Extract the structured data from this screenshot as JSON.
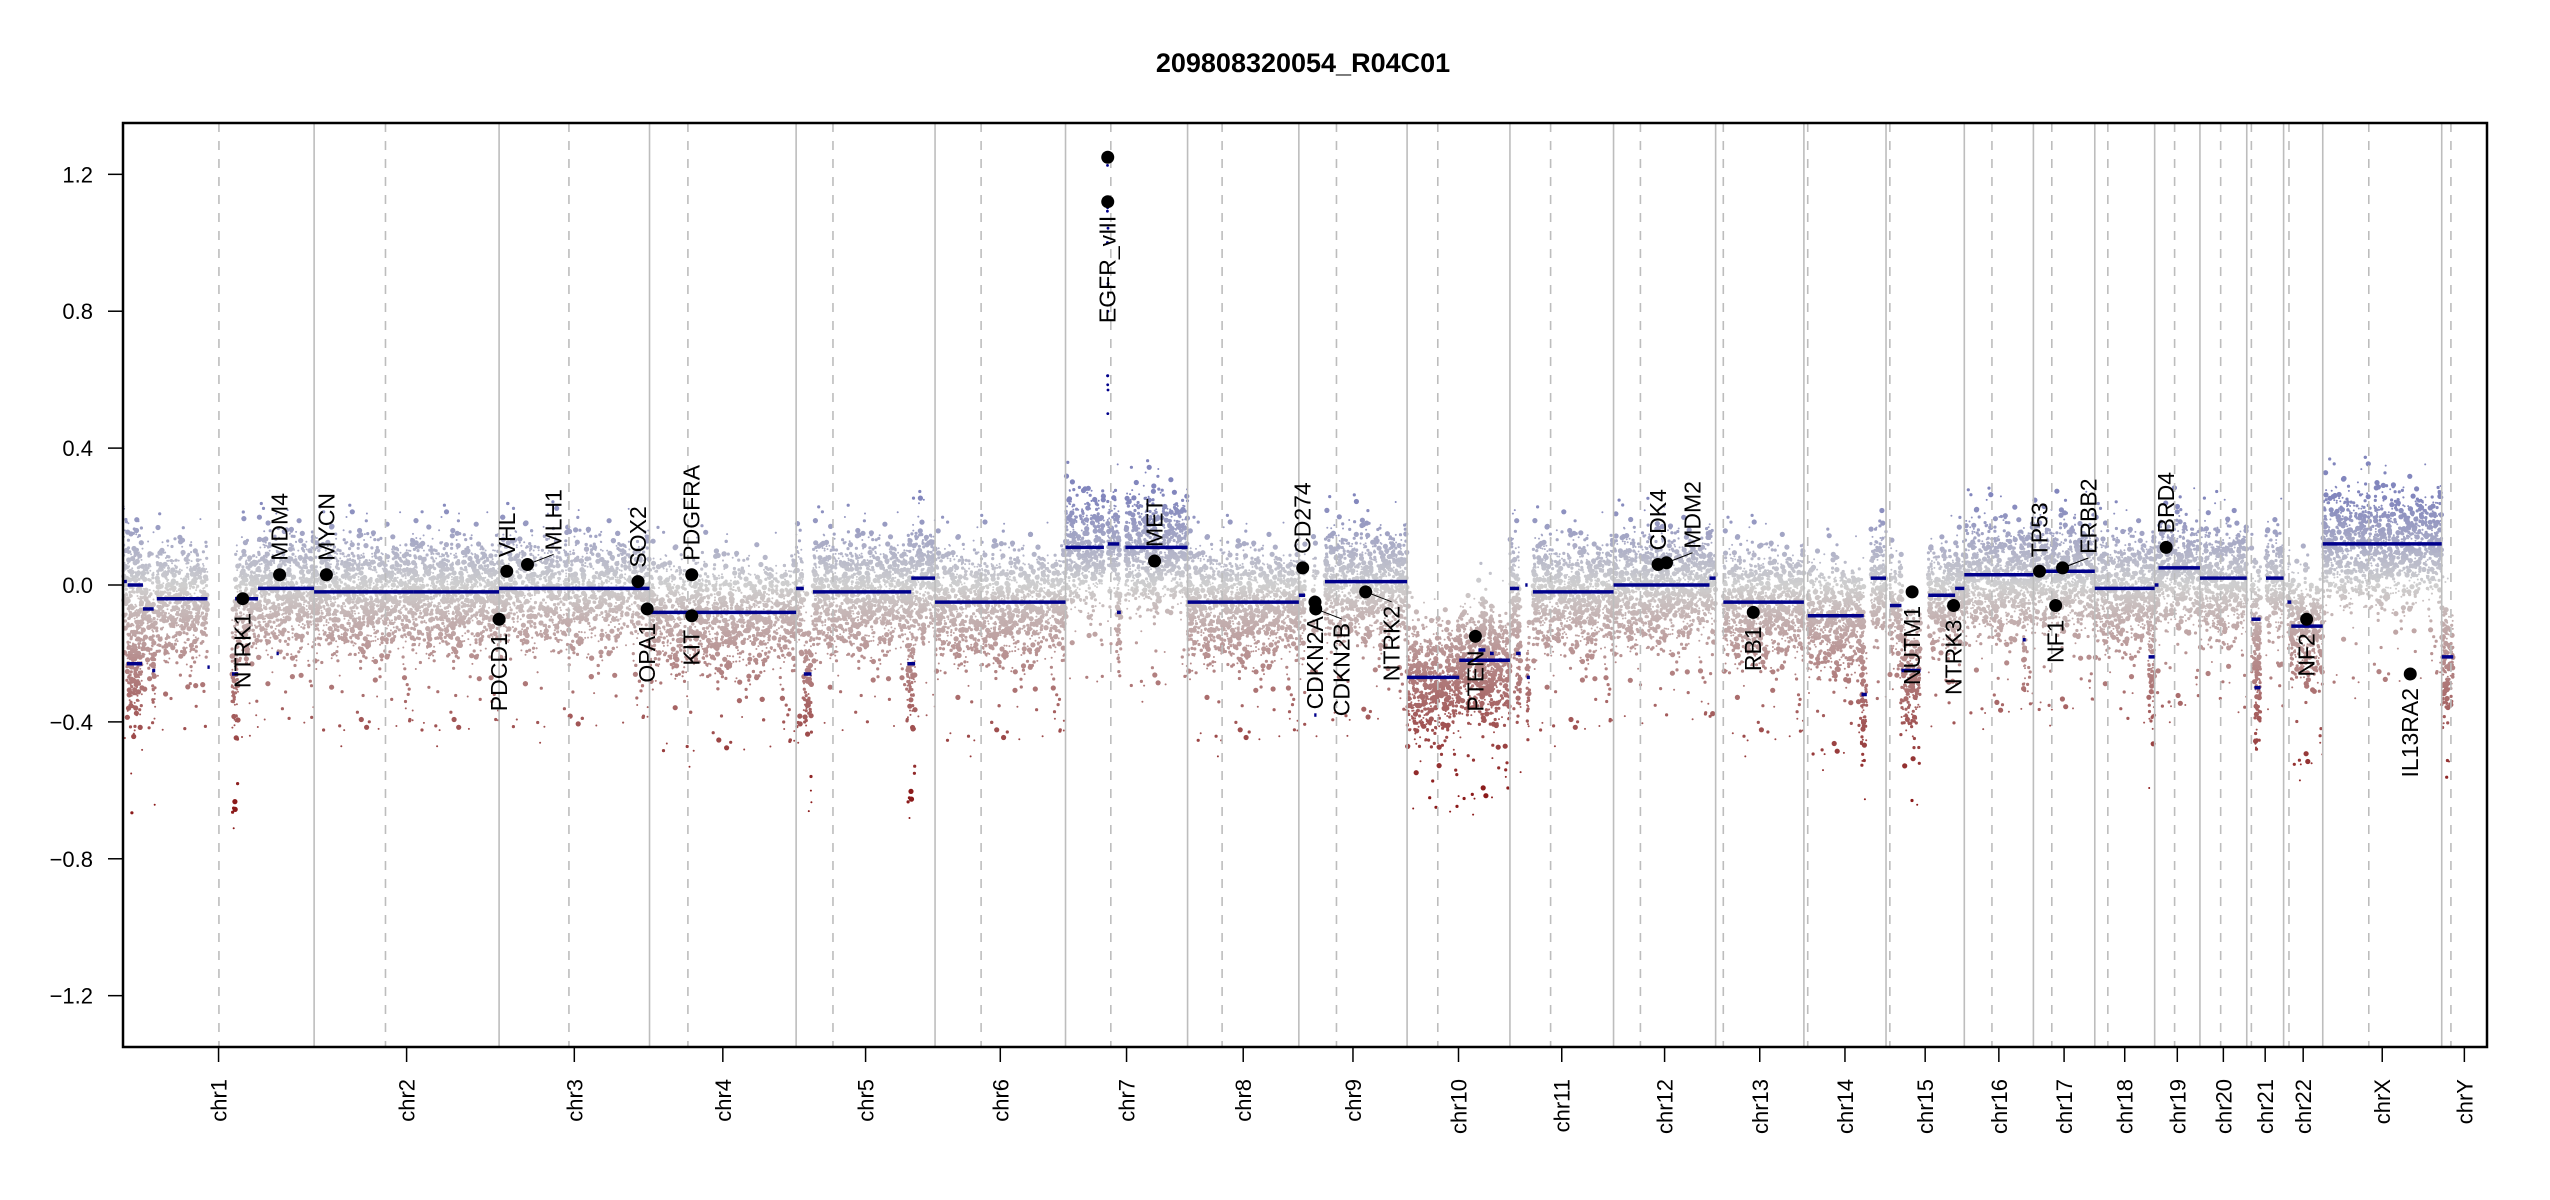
{
  "chart_data": {
    "type": "scatter",
    "title": "209808320054_R04C01",
    "xlabel": "",
    "ylabel": "",
    "ylim": [
      -1.35,
      1.35
    ],
    "yticks": [
      -1.2,
      -0.8,
      -0.4,
      0.0,
      0.4,
      0.8,
      1.2
    ],
    "ytick_labels": [
      "−1.2",
      "−0.8",
      "−0.4",
      "0.0",
      "0.4",
      "0.8",
      "1.2"
    ],
    "grid": false,
    "legend": "none",
    "colors": {
      "gain": "#8286bd",
      "neutral": "#cfcfcf",
      "loss": "#8b1a1a",
      "segment": "#00008b",
      "gene_marker": "#000000",
      "chr_boundary": "#bdbdbd",
      "centromere": "#bdbdbd"
    },
    "chromosomes": [
      {
        "name": "chr1",
        "length": 249,
        "centromere": 125
      },
      {
        "name": "chr2",
        "length": 241,
        "centromere": 93
      },
      {
        "name": "chr3",
        "length": 196,
        "centromere": 91
      },
      {
        "name": "chr4",
        "length": 191,
        "centromere": 50
      },
      {
        "name": "chr5",
        "length": 181,
        "centromere": 48
      },
      {
        "name": "chr6",
        "length": 170,
        "centromere": 60
      },
      {
        "name": "chr7",
        "length": 159,
        "centromere": 59
      },
      {
        "name": "chr8",
        "length": 145,
        "centromere": 45
      },
      {
        "name": "chr9",
        "length": 141,
        "centromere": 49
      },
      {
        "name": "chr10",
        "length": 134,
        "centromere": 40
      },
      {
        "name": "chr11",
        "length": 135,
        "centromere": 53
      },
      {
        "name": "chr12",
        "length": 133,
        "centromere": 35
      },
      {
        "name": "chr13",
        "length": 115,
        "centromere": 10
      },
      {
        "name": "chr14",
        "length": 107,
        "centromere": 5
      },
      {
        "name": "chr15",
        "length": 102,
        "centromere": 5
      },
      {
        "name": "chr16",
        "length": 90,
        "centromere": 36
      },
      {
        "name": "chr17",
        "length": 80,
        "centromere": 24
      },
      {
        "name": "chr18",
        "length": 78,
        "centromere": 17
      },
      {
        "name": "chr19",
        "length": 59,
        "centromere": 26
      },
      {
        "name": "chr20",
        "length": 61,
        "centromere": 27
      },
      {
        "name": "chr21",
        "length": 48,
        "centromere": 6
      },
      {
        "name": "chr22",
        "length": 51,
        "centromere": 7
      },
      {
        "name": "chrX",
        "length": 155,
        "centromere": 60
      },
      {
        "name": "chrY",
        "length": 59,
        "centromere": 12
      }
    ],
    "segments": [
      {
        "chr": "chr1",
        "start": 0,
        "end": 5,
        "value": 0.01
      },
      {
        "chr": "chr1",
        "start": 5,
        "end": 25,
        "value": -0.23
      },
      {
        "chr": "chr1",
        "start": 6,
        "end": 26,
        "value": 0.0
      },
      {
        "chr": "chr1",
        "start": 26,
        "end": 40,
        "value": -0.07
      },
      {
        "chr": "chr1",
        "start": 38,
        "end": 42,
        "value": -0.25
      },
      {
        "chr": "chr1",
        "start": 44,
        "end": 110,
        "value": -0.04
      },
      {
        "chr": "chr1",
        "start": 110,
        "end": 113,
        "value": -0.24
      },
      {
        "chr": "chr1",
        "start": 142,
        "end": 150,
        "value": -0.26
      },
      {
        "chr": "chr1",
        "start": 146,
        "end": 176,
        "value": -0.04
      },
      {
        "chr": "chr1",
        "start": 176,
        "end": 249,
        "value": -0.01
      },
      {
        "chr": "chr1",
        "start": 200,
        "end": 203,
        "value": -0.2
      },
      {
        "chr": "chr2",
        "start": 0,
        "end": 130,
        "value": -0.02
      },
      {
        "chr": "chr2",
        "start": 130,
        "end": 241,
        "value": -0.02
      },
      {
        "chr": "chr3",
        "start": 0,
        "end": 196,
        "value": -0.01
      },
      {
        "chr": "chr4",
        "start": 0,
        "end": 191,
        "value": -0.08
      },
      {
        "chr": "chr5",
        "start": 0,
        "end": 10,
        "value": -0.01
      },
      {
        "chr": "chr5",
        "start": 10,
        "end": 20,
        "value": -0.26
      },
      {
        "chr": "chr5",
        "start": 22,
        "end": 150,
        "value": -0.02
      },
      {
        "chr": "chr5",
        "start": 145,
        "end": 155,
        "value": -0.23
      },
      {
        "chr": "chr5",
        "start": 150,
        "end": 181,
        "value": 0.02
      },
      {
        "chr": "chr6",
        "start": 0,
        "end": 170,
        "value": -0.05
      },
      {
        "chr": "chr7",
        "start": 0,
        "end": 50,
        "value": 0.11
      },
      {
        "chr": "chr7",
        "start": 55,
        "end": 70,
        "value": 0.12
      },
      {
        "chr": "chr7",
        "start": 67,
        "end": 72,
        "value": -0.08
      },
      {
        "chr": "chr7",
        "start": 78,
        "end": 159,
        "value": 0.11
      },
      {
        "chr": "chr8",
        "start": 0,
        "end": 145,
        "value": -0.05
      },
      {
        "chr": "chr9",
        "start": 0,
        "end": 8,
        "value": -0.03
      },
      {
        "chr": "chr9",
        "start": 18,
        "end": 24,
        "value": -0.05
      },
      {
        "chr": "chr9",
        "start": 20,
        "end": 23,
        "value": -0.38
      },
      {
        "chr": "chr9",
        "start": 34,
        "end": 141,
        "value": 0.01
      },
      {
        "chr": "chr10",
        "start": 0,
        "end": 68,
        "value": -0.27
      },
      {
        "chr": "chr10",
        "start": 68,
        "end": 134,
        "value": -0.22
      },
      {
        "chr": "chr10",
        "start": 93,
        "end": 102,
        "value": -0.19
      },
      {
        "chr": "chr10",
        "start": 108,
        "end": 113,
        "value": -0.2
      },
      {
        "chr": "chr11",
        "start": 0,
        "end": 12,
        "value": -0.01
      },
      {
        "chr": "chr11",
        "start": 8,
        "end": 14,
        "value": -0.2
      },
      {
        "chr": "chr11",
        "start": 20,
        "end": 23,
        "value": 0.0
      },
      {
        "chr": "chr11",
        "start": 22,
        "end": 26,
        "value": -0.27
      },
      {
        "chr": "chr11",
        "start": 30,
        "end": 135,
        "value": -0.02
      },
      {
        "chr": "chr12",
        "start": 0,
        "end": 125,
        "value": 0.0
      },
      {
        "chr": "chr12",
        "start": 125,
        "end": 133,
        "value": 0.02
      },
      {
        "chr": "chr13",
        "start": 10,
        "end": 115,
        "value": -0.05
      },
      {
        "chr": "chr14",
        "start": 5,
        "end": 78,
        "value": -0.09
      },
      {
        "chr": "chr14",
        "start": 75,
        "end": 82,
        "value": -0.32
      },
      {
        "chr": "chr14",
        "start": 87,
        "end": 107,
        "value": 0.02
      },
      {
        "chr": "chr15",
        "start": 5,
        "end": 20,
        "value": -0.06
      },
      {
        "chr": "chr15",
        "start": 20,
        "end": 45,
        "value": -0.25
      },
      {
        "chr": "chr15",
        "start": 55,
        "end": 90,
        "value": -0.03
      },
      {
        "chr": "chr15",
        "start": 90,
        "end": 102,
        "value": -0.01
      },
      {
        "chr": "chr16",
        "start": 0,
        "end": 90,
        "value": 0.03
      },
      {
        "chr": "chr16",
        "start": 76,
        "end": 80,
        "value": -0.16
      },
      {
        "chr": "chr17",
        "start": 0,
        "end": 80,
        "value": 0.04
      },
      {
        "chr": "chr18",
        "start": 0,
        "end": 78,
        "value": -0.01
      },
      {
        "chr": "chr18",
        "start": 70,
        "end": 78,
        "value": -0.21
      },
      {
        "chr": "chr19",
        "start": 0,
        "end": 5,
        "value": 0.0
      },
      {
        "chr": "chr19",
        "start": 5,
        "end": 59,
        "value": 0.05
      },
      {
        "chr": "chr20",
        "start": 0,
        "end": 61,
        "value": 0.02
      },
      {
        "chr": "chr21",
        "start": 6,
        "end": 18,
        "value": -0.1
      },
      {
        "chr": "chr21",
        "start": 10,
        "end": 18,
        "value": -0.3
      },
      {
        "chr": "chr21",
        "start": 25,
        "end": 48,
        "value": 0.02
      },
      {
        "chr": "chr22",
        "start": 5,
        "end": 10,
        "value": -0.05
      },
      {
        "chr": "chr22",
        "start": 10,
        "end": 51,
        "value": -0.12
      },
      {
        "chr": "chrX",
        "start": 0,
        "end": 155,
        "value": 0.12
      },
      {
        "chr": "chrY",
        "start": 0,
        "end": 15,
        "value": -0.21
      }
    ],
    "genes": [
      {
        "name": "NTRK1",
        "chr": "chr1",
        "pos": 156,
        "value": -0.04,
        "label_side": "below"
      },
      {
        "name": "MDM4",
        "chr": "chr1",
        "pos": 204,
        "value": 0.03,
        "label_side": "above"
      },
      {
        "name": "MYCN",
        "chr": "chr2",
        "pos": 16,
        "value": 0.03,
        "label_side": "above"
      },
      {
        "name": "PDCD1",
        "chr": "chr2",
        "pos": 241,
        "value": -0.1,
        "label_side": "below"
      },
      {
        "name": "VHL",
        "chr": "chr3",
        "pos": 10,
        "value": 0.04,
        "label_side": "above"
      },
      {
        "name": "MLH1",
        "chr": "chr3",
        "pos": 37,
        "value": 0.06,
        "label_side": "above"
      },
      {
        "name": "SOX2",
        "chr": "chr3",
        "pos": 181,
        "value": 0.01,
        "label_side": "above"
      },
      {
        "name": "OPA1",
        "chr": "chr3",
        "pos": 193,
        "value": -0.07,
        "label_side": "below"
      },
      {
        "name": "PDGFRA",
        "chr": "chr4",
        "pos": 55,
        "value": 0.03,
        "label_side": "above"
      },
      {
        "name": "KIT",
        "chr": "chr4",
        "pos": 55,
        "value": -0.09,
        "label_side": "below"
      },
      {
        "name": "EGFR",
        "chr": "chr7",
        "pos": 55,
        "value": 1.25,
        "label_side": "none"
      },
      {
        "name": "EGFR_vIII",
        "chr": "chr7",
        "pos": 55,
        "value": 1.12,
        "label_side": "below"
      },
      {
        "name": "MET",
        "chr": "chr7",
        "pos": 116,
        "value": 0.07,
        "label_side": "above"
      },
      {
        "name": "CD274",
        "chr": "chr9",
        "pos": 5,
        "value": 0.05,
        "label_side": "above"
      },
      {
        "name": "CDKN2A",
        "chr": "chr9",
        "pos": 21,
        "value": -0.05,
        "label_side": "below"
      },
      {
        "name": "CDKN2B",
        "chr": "chr9",
        "pos": 22,
        "value": -0.07,
        "label_side": "below"
      },
      {
        "name": "NTRK2",
        "chr": "chr9",
        "pos": 87,
        "value": -0.02,
        "label_side": "below"
      },
      {
        "name": "PTEN",
        "chr": "chr10",
        "pos": 89,
        "value": -0.15,
        "label_side": "below"
      },
      {
        "name": "CDK4",
        "chr": "chr12",
        "pos": 58,
        "value": 0.06,
        "label_side": "above"
      },
      {
        "name": "MDM2",
        "chr": "chr12",
        "pos": 69,
        "value": 0.065,
        "label_side": "above"
      },
      {
        "name": "RB1",
        "chr": "chr13",
        "pos": 49,
        "value": -0.08,
        "label_side": "below"
      },
      {
        "name": "NUTM1",
        "chr": "chr15",
        "pos": 34,
        "value": -0.02,
        "label_side": "below"
      },
      {
        "name": "NTRK3",
        "chr": "chr15",
        "pos": 88,
        "value": -0.06,
        "label_side": "below"
      },
      {
        "name": "TP53",
        "chr": "chr17",
        "pos": 8,
        "value": 0.04,
        "label_side": "above"
      },
      {
        "name": "NF1",
        "chr": "chr17",
        "pos": 29,
        "value": -0.06,
        "label_side": "below"
      },
      {
        "name": "ERBB2",
        "chr": "chr17",
        "pos": 38,
        "value": 0.05,
        "label_side": "above"
      },
      {
        "name": "BRD4",
        "chr": "chr19",
        "pos": 15,
        "value": 0.11,
        "label_side": "above"
      },
      {
        "name": "NF2",
        "chr": "chr22",
        "pos": 30,
        "value": -0.1,
        "label_side": "below"
      },
      {
        "name": "IL13RA2",
        "chr": "chrX",
        "pos": 114,
        "value": -0.26,
        "label_side": "below"
      }
    ]
  }
}
